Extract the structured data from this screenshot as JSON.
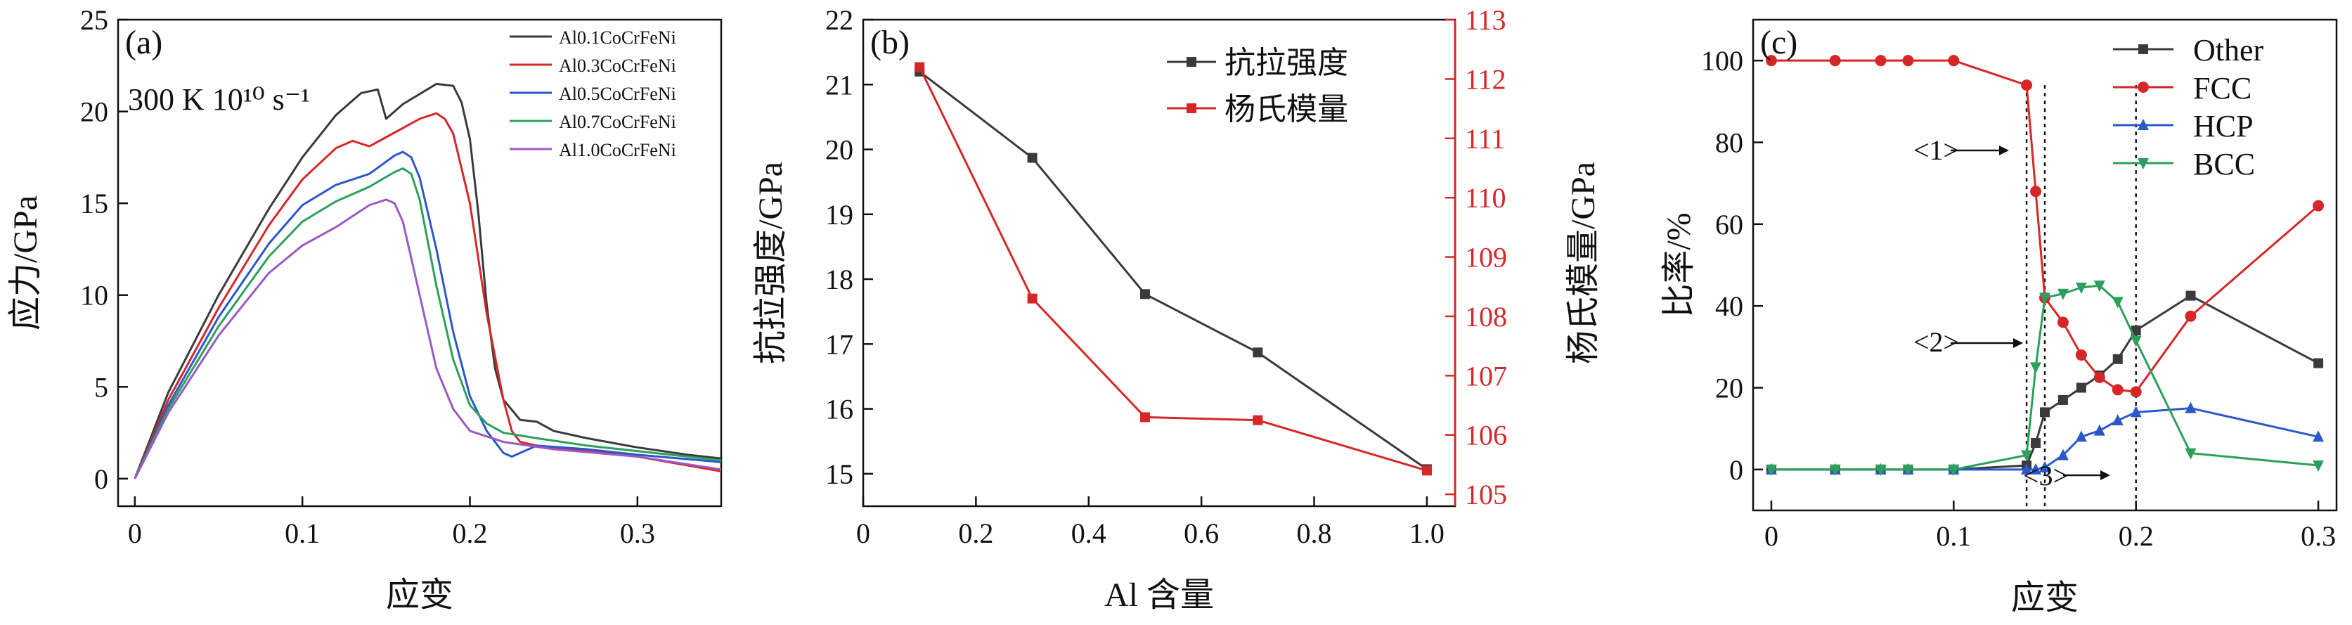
{
  "chart_data": [
    {
      "type": "line",
      "panel_label": "(a)",
      "annotation": "300 K 10¹⁰ s⁻¹",
      "xlabel": "应变",
      "ylabel": "应力/GPa",
      "xlim": [
        -0.01,
        0.35
      ],
      "ylim": [
        -1.5,
        25
      ],
      "xticks": [
        "0",
        "0.1",
        "0.2",
        "0.3"
      ],
      "yticks": [
        "0",
        "5",
        "10",
        "15",
        "20",
        "25"
      ],
      "grid": false,
      "legend_position": "top-right",
      "series": [
        {
          "name": "Al0.1CoCrFeNi",
          "color": "#3a3a3a",
          "x": [
            0,
            0.02,
            0.05,
            0.08,
            0.1,
            0.12,
            0.135,
            0.145,
            0.15,
            0.16,
            0.18,
            0.19,
            0.195,
            0.2,
            0.205,
            0.21,
            0.215,
            0.22,
            0.23,
            0.24,
            0.25,
            0.27,
            0.3,
            0.33,
            0.35
          ],
          "y": [
            0,
            4.7,
            10,
            14.7,
            17.5,
            19.8,
            21.0,
            21.2,
            19.6,
            20.4,
            21.5,
            21.4,
            20.5,
            18.5,
            14.5,
            9.5,
            6.0,
            4.3,
            3.2,
            3.1,
            2.6,
            2.2,
            1.7,
            1.3,
            1.1
          ]
        },
        {
          "name": "Al0.3CoCrFeNi",
          "color": "#d62728",
          "x": [
            0,
            0.02,
            0.05,
            0.08,
            0.1,
            0.12,
            0.13,
            0.14,
            0.15,
            0.17,
            0.18,
            0.185,
            0.19,
            0.2,
            0.21,
            0.22,
            0.225,
            0.23,
            0.24,
            0.26,
            0.3,
            0.35
          ],
          "y": [
            0,
            4.3,
            9.3,
            13.8,
            16.3,
            18.0,
            18.4,
            18.1,
            18.6,
            19.6,
            19.9,
            19.6,
            18.8,
            15.0,
            9.0,
            4.3,
            2.6,
            2.0,
            1.8,
            1.6,
            1.2,
            0.4
          ]
        },
        {
          "name": "Al0.5CoCrFeNi",
          "color": "#2b58c9",
          "x": [
            0,
            0.02,
            0.05,
            0.08,
            0.1,
            0.12,
            0.14,
            0.155,
            0.16,
            0.165,
            0.17,
            0.18,
            0.19,
            0.2,
            0.21,
            0.22,
            0.225,
            0.23,
            0.24,
            0.27,
            0.3,
            0.35
          ],
          "y": [
            0,
            4.0,
            8.8,
            12.8,
            14.9,
            16.0,
            16.6,
            17.6,
            17.8,
            17.5,
            16.4,
            12.5,
            8.0,
            4.5,
            2.6,
            1.4,
            1.2,
            1.4,
            1.8,
            1.6,
            1.3,
            0.9
          ]
        },
        {
          "name": "Al0.7CoCrFeNi",
          "color": "#2ca05a",
          "x": [
            0,
            0.02,
            0.05,
            0.08,
            0.1,
            0.12,
            0.14,
            0.155,
            0.16,
            0.165,
            0.17,
            0.18,
            0.19,
            0.2,
            0.21,
            0.22,
            0.24,
            0.27,
            0.3,
            0.35
          ],
          "y": [
            0,
            3.8,
            8.3,
            12.1,
            14.0,
            15.1,
            15.9,
            16.7,
            16.9,
            16.6,
            15.2,
            10.5,
            6.5,
            4.0,
            3.0,
            2.5,
            2.2,
            1.8,
            1.5,
            1.0
          ]
        },
        {
          "name": "Al1.0CoCrFeNi",
          "color": "#9b59c6",
          "x": [
            0,
            0.02,
            0.05,
            0.08,
            0.1,
            0.12,
            0.14,
            0.15,
            0.155,
            0.16,
            0.17,
            0.18,
            0.19,
            0.2,
            0.22,
            0.25,
            0.3,
            0.35
          ],
          "y": [
            0,
            3.6,
            7.8,
            11.2,
            12.7,
            13.7,
            14.9,
            15.2,
            15.0,
            14.0,
            10.0,
            6.0,
            3.8,
            2.6,
            2.0,
            1.6,
            1.2,
            0.5
          ]
        }
      ]
    },
    {
      "type": "line",
      "panel_label": "(b)",
      "xlabel": "Al 含量",
      "ylabel": "抗拉强度/GPa",
      "ylabel_right": "杨氏模量/GPa",
      "xlim": [
        0,
        1.05
      ],
      "ylim": [
        14.5,
        22
      ],
      "ylim_right": [
        104.8,
        113
      ],
      "xticks": [
        "0",
        "0.2",
        "0.4",
        "0.6",
        "0.8",
        "1.0"
      ],
      "yticks": [
        "15",
        "16",
        "17",
        "18",
        "19",
        "20",
        "21",
        "22"
      ],
      "yticks_right": [
        "105",
        "106",
        "107",
        "108",
        "109",
        "110",
        "111",
        "112",
        "113"
      ],
      "right_axis_color": "#d62728",
      "grid": false,
      "legend_position": "top-right",
      "series": [
        {
          "name": "抗拉强度",
          "color": "#3a3a3a",
          "axis": "left",
          "x": [
            0.1,
            0.3,
            0.5,
            0.7,
            1.0
          ],
          "y": [
            21.2,
            19.87,
            17.77,
            16.87,
            15.07
          ]
        },
        {
          "name": "杨氏模量",
          "color": "#d62728",
          "axis": "right",
          "x": [
            0.1,
            0.3,
            0.5,
            0.7,
            1.0
          ],
          "y": [
            112.2,
            108.3,
            106.3,
            106.25,
            105.4
          ]
        }
      ]
    },
    {
      "type": "line",
      "panel_label": "(c)",
      "xlabel": "应变",
      "ylabel": "比率/%",
      "xlim": [
        -0.01,
        0.31
      ],
      "ylim": [
        -10,
        110
      ],
      "xticks": [
        "0",
        "0.1",
        "0.2",
        "0.3"
      ],
      "yticks": [
        "0",
        "20",
        "40",
        "60",
        "80",
        "100"
      ],
      "grid": false,
      "legend_position": "top-right",
      "annotations": [
        "<1>",
        "<2>",
        "<3>"
      ],
      "vlines": [
        0.14,
        0.15,
        0.2
      ],
      "series": [
        {
          "name": "Other",
          "color": "#3a3a3a",
          "marker": "square",
          "x": [
            0,
            0.035,
            0.06,
            0.075,
            0.1,
            0.14,
            0.145,
            0.15,
            0.16,
            0.17,
            0.18,
            0.19,
            0.2,
            0.23,
            0.3
          ],
          "y": [
            0,
            0,
            0,
            0,
            0,
            1,
            6.5,
            14,
            17,
            20,
            23,
            27,
            34,
            42.5,
            26
          ]
        },
        {
          "name": "FCC",
          "color": "#d62728",
          "marker": "circle",
          "x": [
            0,
            0.035,
            0.06,
            0.075,
            0.1,
            0.14,
            0.145,
            0.15,
            0.16,
            0.17,
            0.18,
            0.19,
            0.2,
            0.23,
            0.3
          ],
          "y": [
            100,
            100,
            100,
            100,
            100,
            94,
            68,
            42,
            36,
            28,
            22.5,
            19.5,
            19,
            37.5,
            64.5
          ]
        },
        {
          "name": "HCP",
          "color": "#2b58c9",
          "marker": "triangle-up",
          "x": [
            0,
            0.035,
            0.06,
            0.075,
            0.1,
            0.14,
            0.145,
            0.15,
            0.16,
            0.17,
            0.18,
            0.19,
            0.2,
            0.23,
            0.3
          ],
          "y": [
            0,
            0,
            0,
            0,
            0,
            0,
            0,
            0.5,
            3.5,
            8,
            9.5,
            12,
            14,
            15,
            8
          ]
        },
        {
          "name": "BCC",
          "color": "#2ca05a",
          "marker": "triangle-down",
          "x": [
            0,
            0.035,
            0.06,
            0.075,
            0.1,
            0.14,
            0.145,
            0.15,
            0.16,
            0.17,
            0.18,
            0.19,
            0.2,
            0.23,
            0.3
          ],
          "y": [
            0,
            0,
            0,
            0,
            0,
            3.5,
            25,
            42,
            43,
            44.5,
            45,
            41,
            31.5,
            4,
            1
          ]
        }
      ]
    }
  ]
}
